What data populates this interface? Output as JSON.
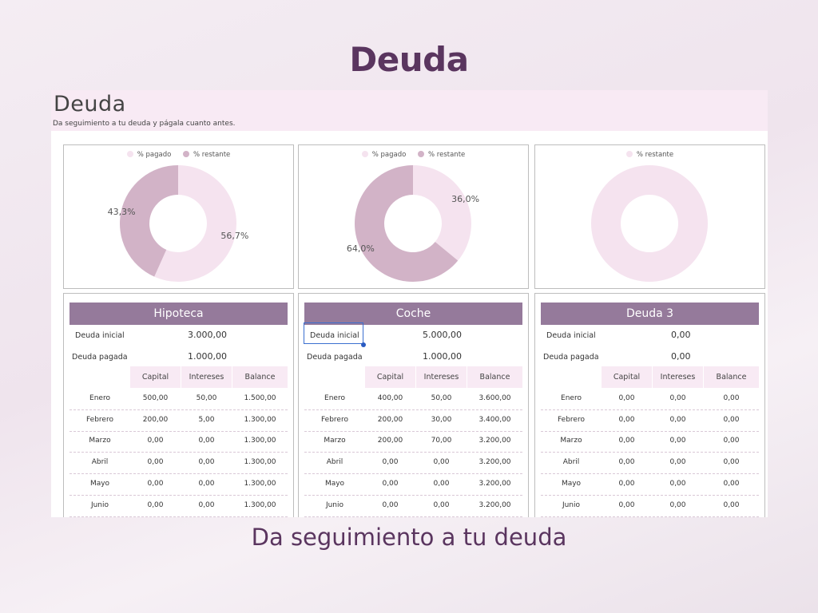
{
  "slide": {
    "title": "Deuda",
    "caption": "Da seguimiento a tu deuda"
  },
  "sheet": {
    "title": "Deuda",
    "subtitle": "Da seguimiento a tu deuda y págala cuanto antes."
  },
  "colors": {
    "pagado": "#f5e3ef",
    "restante": "#d2b3c7",
    "header_bar": "#957a9b",
    "title": "#5a355f"
  },
  "labels": {
    "deuda_inicial": "Deuda inicial",
    "deuda_pagada": "Deuda pagada",
    "capital": "Capital",
    "intereses": "Intereses",
    "balance": "Balance"
  },
  "months": [
    "Enero",
    "Febrero",
    "Marzo",
    "Abril",
    "Mayo",
    "Junio"
  ],
  "chart_data": [
    {
      "type": "pie",
      "donut": true,
      "legend": [
        "% pagado",
        "% restante"
      ],
      "series": [
        {
          "values": [
            56.7,
            43.3
          ]
        }
      ],
      "data_labels": [
        "56,7%",
        "43,3%"
      ]
    },
    {
      "type": "pie",
      "donut": true,
      "legend": [
        "% pagado",
        "% restante"
      ],
      "series": [
        {
          "values": [
            36.0,
            64.0
          ]
        }
      ],
      "data_labels": [
        "36,0%",
        "64,0%"
      ]
    },
    {
      "type": "pie",
      "donut": true,
      "legend": [
        "% restante"
      ],
      "series": [
        {
          "values": [
            100
          ]
        }
      ],
      "data_labels": []
    }
  ],
  "debts": [
    {
      "name": "Hipoteca",
      "inicial": "3.000,00",
      "pagada": "1.000,00",
      "rows": [
        [
          "500,00",
          "50,00",
          "1.500,00"
        ],
        [
          "200,00",
          "5,00",
          "1.300,00"
        ],
        [
          "0,00",
          "0,00",
          "1.300,00"
        ],
        [
          "0,00",
          "0,00",
          "1.300,00"
        ],
        [
          "0,00",
          "0,00",
          "1.300,00"
        ],
        [
          "0,00",
          "0,00",
          "1.300,00"
        ]
      ]
    },
    {
      "name": "Coche",
      "inicial": "5.000,00",
      "pagada": "1.000,00",
      "rows": [
        [
          "400,00",
          "50,00",
          "3.600,00"
        ],
        [
          "200,00",
          "30,00",
          "3.400,00"
        ],
        [
          "200,00",
          "70,00",
          "3.200,00"
        ],
        [
          "0,00",
          "0,00",
          "3.200,00"
        ],
        [
          "0,00",
          "0,00",
          "3.200,00"
        ],
        [
          "0,00",
          "0,00",
          "3.200,00"
        ]
      ]
    },
    {
      "name": "Deuda 3",
      "inicial": "0,00",
      "pagada": "0,00",
      "rows": [
        [
          "0,00",
          "0,00",
          "0,00"
        ],
        [
          "0,00",
          "0,00",
          "0,00"
        ],
        [
          "0,00",
          "0,00",
          "0,00"
        ],
        [
          "0,00",
          "0,00",
          "0,00"
        ],
        [
          "0,00",
          "0,00",
          "0,00"
        ],
        [
          "0,00",
          "0,00",
          "0,00"
        ]
      ]
    }
  ]
}
